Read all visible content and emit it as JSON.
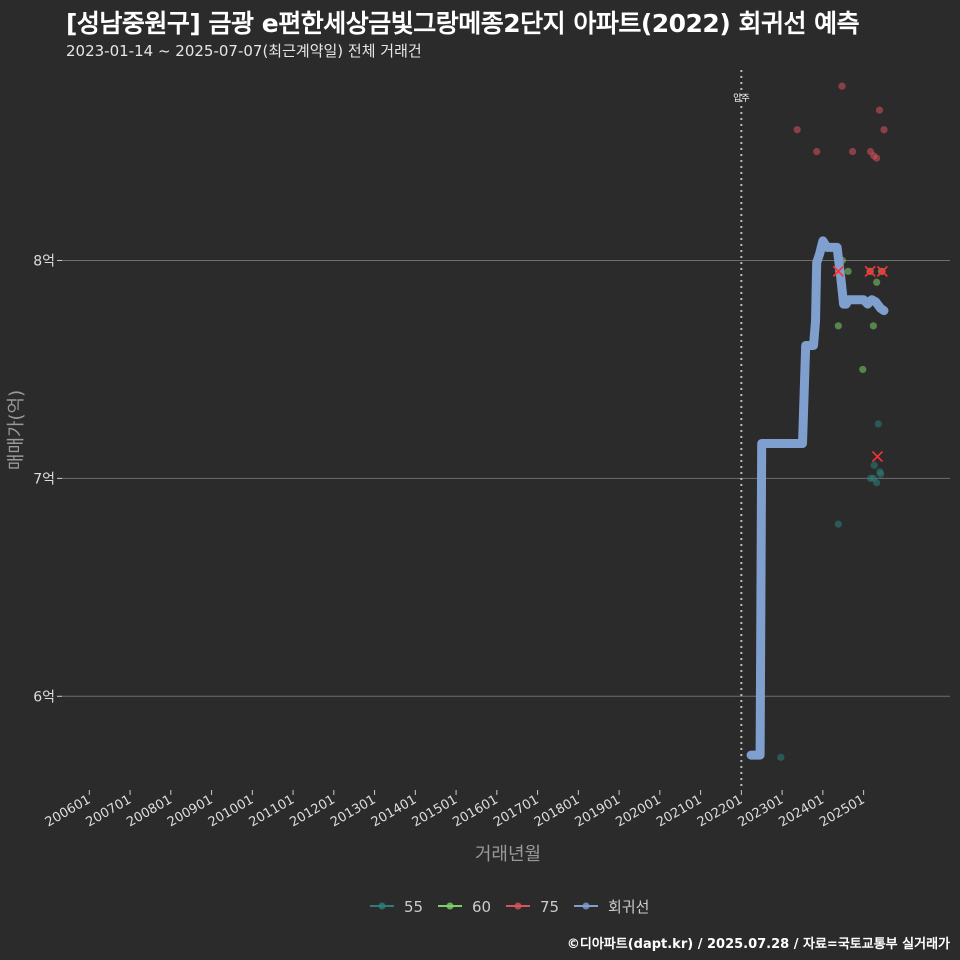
{
  "header": {
    "title": "[성남중원구] 금광 e편한세상금빛그랑메종2단지 아파트(2022) 회귀선 예측",
    "subtitle": "2023-01-14 ~ 2025-07-07(최근계약일) 전체 거래건"
  },
  "footer": {
    "source": "©디아파트(dapt.kr) / 2025.07.28 / 자료=국토교통부 실거래가"
  },
  "colors": {
    "background": "#2b2b2c",
    "grid": "#6e6e6e",
    "area55": "#2a7f7a",
    "area60": "#7ecf6a",
    "area75": "#d9525d",
    "regression": "#7f9fcf",
    "cancel": "#ff3030"
  },
  "chart_data": {
    "type": "scatter",
    "xlabel": "거래년월",
    "ylabel": "매매가(억)",
    "x_ticks": [
      "200601",
      "200701",
      "200801",
      "200901",
      "201001",
      "201101",
      "201201",
      "201301",
      "201401",
      "201501",
      "201601",
      "201701",
      "201801",
      "201901",
      "202001",
      "202101",
      "202201",
      "202301",
      "202401",
      "202501"
    ],
    "xlim": [
      2005.33,
      2027.12
    ],
    "y_ticks": [
      6,
      7,
      8
    ],
    "y_tick_labels": [
      "6억",
      "7억",
      "8억"
    ],
    "ylim": [
      5.57,
      8.92
    ],
    "move_in": {
      "x": 2022.0,
      "label": "입주"
    },
    "legend": [
      {
        "key": "area55",
        "label": "55"
      },
      {
        "key": "area60",
        "label": "60"
      },
      {
        "key": "area75",
        "label": "75"
      },
      {
        "key": "regression",
        "label": "회귀선"
      }
    ],
    "series": [
      {
        "name": "55",
        "color_key": "area55",
        "points": [
          [
            2022.97,
            5.72
          ],
          [
            2024.38,
            6.79
          ],
          [
            2025.17,
            7.0
          ],
          [
            2025.24,
            7.0
          ],
          [
            2025.32,
            6.98
          ],
          [
            2025.4,
            7.03
          ],
          [
            2025.36,
            7.25
          ],
          [
            2025.26,
            7.06
          ],
          [
            2025.42,
            7.02
          ]
        ]
      },
      {
        "name": "60",
        "color_key": "area60",
        "points": [
          [
            2024.38,
            7.7
          ],
          [
            2024.48,
            8.0
          ],
          [
            2024.98,
            7.5
          ],
          [
            2025.24,
            7.7
          ],
          [
            2025.32,
            7.9
          ],
          [
            2025.16,
            7.95
          ],
          [
            2025.44,
            7.95
          ],
          [
            2024.62,
            7.95
          ]
        ]
      },
      {
        "name": "75",
        "color_key": "area75",
        "points": [
          [
            2023.37,
            8.6
          ],
          [
            2023.85,
            8.5
          ],
          [
            2024.47,
            8.8
          ],
          [
            2024.73,
            8.5
          ],
          [
            2025.17,
            8.5
          ],
          [
            2025.25,
            8.48
          ],
          [
            2025.32,
            8.47
          ],
          [
            2025.39,
            8.69
          ],
          [
            2025.5,
            8.6
          ],
          [
            2024.38,
            7.95
          ],
          [
            2025.16,
            7.95
          ],
          [
            2025.46,
            7.95
          ]
        ]
      },
      {
        "name": "회귀선",
        "color_key": "regression",
        "line": [
          [
            2022.24,
            5.73
          ],
          [
            2022.46,
            5.73
          ],
          [
            2022.5,
            7.16
          ],
          [
            2023.5,
            7.16
          ],
          [
            2023.58,
            7.61
          ],
          [
            2023.77,
            7.61
          ],
          [
            2023.82,
            7.72
          ],
          [
            2023.85,
            7.99
          ],
          [
            2023.92,
            8.03
          ],
          [
            2024.0,
            8.09
          ],
          [
            2024.1,
            8.06
          ],
          [
            2024.25,
            8.06
          ],
          [
            2024.35,
            8.06
          ],
          [
            2024.44,
            7.92
          ],
          [
            2024.51,
            7.8
          ],
          [
            2024.57,
            7.8
          ],
          [
            2024.63,
            7.82
          ],
          [
            2024.78,
            7.82
          ],
          [
            2025.0,
            7.82
          ],
          [
            2025.1,
            7.8
          ],
          [
            2025.2,
            7.82
          ],
          [
            2025.3,
            7.81
          ],
          [
            2025.42,
            7.78
          ],
          [
            2025.5,
            7.77
          ]
        ]
      }
    ],
    "cancelled": [
      [
        2024.38,
        7.95
      ],
      [
        2025.16,
        7.95
      ],
      [
        2025.46,
        7.95
      ],
      [
        2025.34,
        7.1
      ]
    ]
  }
}
